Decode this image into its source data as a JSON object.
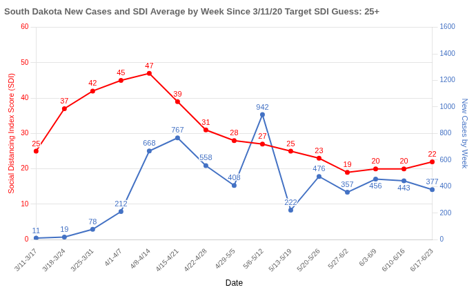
{
  "chart_data": {
    "type": "line",
    "title": "South Dakota New Cases and SDI Average by Week Since 3/11/20 Target SDI Guess: 25+",
    "xlabel": "Date",
    "ylabel": "Social Distancing Index Score (SDI)",
    "y2label": "New Cases by Week",
    "categories": [
      "3/11-3/17",
      "3/18-3/24",
      "3/25-3/31",
      "4/1-4/7",
      "4/8-4/14",
      "4/15-4/21",
      "4/22-4/28",
      "4/29-5/5",
      "5/6-5/12",
      "5/13-5/19",
      "5/20-5/26",
      "5/27-6/2",
      "6/3-6/9",
      "6/10-6/16",
      "6/17-6/23"
    ],
    "series": [
      {
        "color": "#ff0000",
        "values": [
          25,
          37,
          42,
          45,
          47,
          39,
          31,
          28,
          27,
          25,
          23,
          19,
          20,
          20,
          22
        ]
      },
      {
        "color": "#4472c4",
        "axis": "y2",
        "values": [
          11,
          19,
          78,
          212,
          668,
          767,
          558,
          408,
          942,
          222,
          476,
          357,
          456,
          443,
          377
        ]
      }
    ],
    "ylim": [
      0,
      60
    ],
    "yticks": [
      0,
      10,
      20,
      30,
      40,
      50,
      60
    ],
    "y2lim": [
      0,
      1600
    ],
    "y2ticks": [
      0,
      200,
      400,
      600,
      800,
      1000,
      1200,
      1400,
      1600
    ],
    "grid": true,
    "data_labels": true
  }
}
